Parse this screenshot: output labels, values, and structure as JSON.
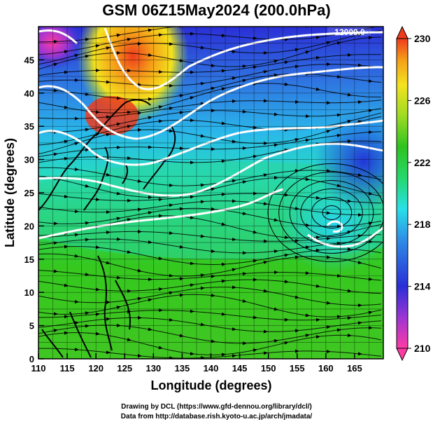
{
  "title": "GSM 06Z15May2024 (200.0hPa)",
  "map": {
    "x_label": "Longitude (degrees)",
    "y_label": "Latitude (degrees)",
    "lon_range": [
      110,
      170
    ],
    "lat_range": [
      0,
      50
    ],
    "lon_ticks": [
      "110",
      "115",
      "120",
      "125",
      "130",
      "135",
      "140",
      "145",
      "150",
      "155",
      "160",
      "165"
    ],
    "lat_ticks": [
      "0",
      "5",
      "10",
      "15",
      "20",
      "25",
      "30",
      "35",
      "40",
      "45"
    ],
    "contour_label": "12000.0",
    "contour_variable": "geopotential height",
    "shaded_variable": "temperature (K)",
    "vectors": "wind streamlines",
    "grid": true
  },
  "colorbar": {
    "min": 210,
    "max": 230,
    "ticks": [
      "230",
      "226",
      "222",
      "218",
      "214",
      "210"
    ],
    "colors": [
      "#ff3aa5",
      "#9b35d4",
      "#2a2fd6",
      "#2f8de6",
      "#28e0e8",
      "#26d86b",
      "#2ec31f",
      "#9ddb23",
      "#f4e21e",
      "#f59f19",
      "#ef3b1d"
    ]
  },
  "credits": {
    "line1": "Drawing by DCL (https://www.gfd-dennou.org/library/dcl/)",
    "line2": "Data from http://database.rish.kyoto-u.ac.jp/arch/jmadata/"
  }
}
